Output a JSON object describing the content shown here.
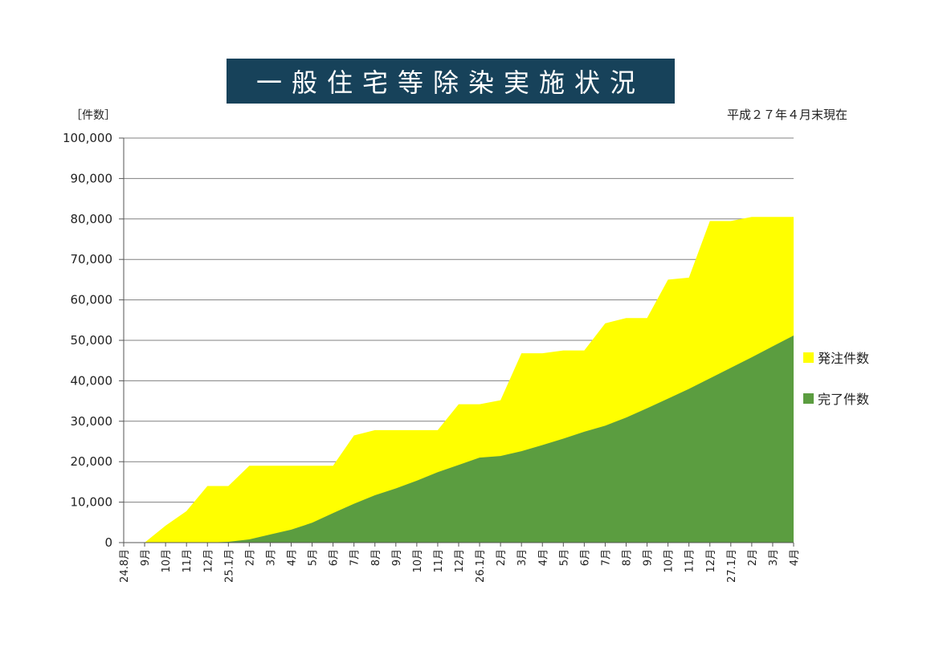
{
  "title": "一般住宅等除染実施状況",
  "date_note": "平成２７年４月末現在",
  "y_unit": "［件数］",
  "colors": {
    "ordered": "#ffff00",
    "completed": "#5b9d40",
    "title_bg": "#17425a",
    "grid": "#808080"
  },
  "chart_data": {
    "type": "area",
    "title": "一般住宅等除染実施状況",
    "ylabel": "［件数］",
    "ylim": [
      0,
      100000
    ],
    "grid": true,
    "legend_position": "right",
    "y_ticks": [
      "0",
      "10,000",
      "20,000",
      "30,000",
      "40,000",
      "50,000",
      "60,000",
      "70,000",
      "80,000",
      "90,000",
      "100,000"
    ],
    "categories": [
      "24.8月",
      "9月",
      "10月",
      "11月",
      "12月",
      "25.1月",
      "2月",
      "3月",
      "4月",
      "5月",
      "6月",
      "7月",
      "8月",
      "9月",
      "10月",
      "11月",
      "12月",
      "26.1月",
      "2月",
      "3月",
      "4月",
      "5月",
      "6月",
      "7月",
      "8月",
      "9月",
      "10月",
      "11月",
      "12月",
      "27.1月",
      "2月",
      "3月",
      "4月"
    ],
    "series": [
      {
        "name": "発注件数",
        "values": [
          0,
          0,
          4200,
          7800,
          14000,
          14000,
          19000,
          19000,
          19000,
          19000,
          19000,
          26500,
          27800,
          27800,
          27800,
          27800,
          34200,
          34200,
          35200,
          46800,
          46800,
          47500,
          47500,
          54200,
          55500,
          55500,
          65000,
          65500,
          79500,
          79500,
          80500,
          80500,
          80500
        ]
      },
      {
        "name": "完了件数",
        "values": [
          0,
          0,
          0,
          0,
          0,
          200,
          800,
          2000,
          3200,
          4900,
          7300,
          9600,
          11700,
          13400,
          15300,
          17400,
          19200,
          21000,
          21400,
          22600,
          24100,
          25700,
          27400,
          28900,
          30900,
          33200,
          35600,
          38000,
          40600,
          43200,
          45800,
          48500,
          51200
        ]
      }
    ]
  }
}
